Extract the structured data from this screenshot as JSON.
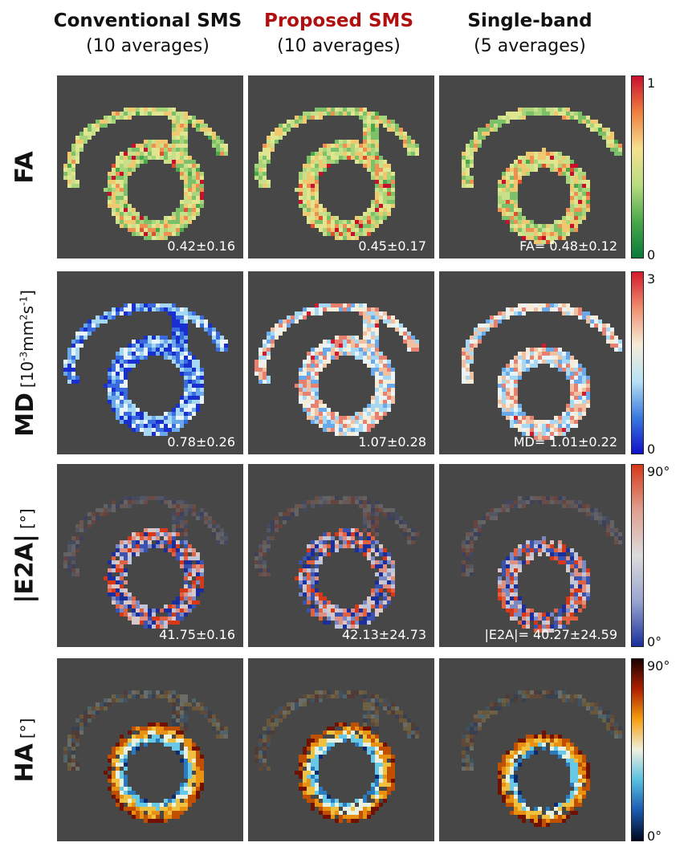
{
  "columns": [
    {
      "title": "Conventional SMS",
      "subtitle": "(10 averages)",
      "title_color": "#111111"
    },
    {
      "title": "Proposed SMS",
      "subtitle": "(10 averages)",
      "title_color": "#b01010"
    },
    {
      "title": "Single-band",
      "subtitle": "(5 averages)",
      "title_color": "#111111"
    }
  ],
  "rows": [
    {
      "label": "FA",
      "unit": "",
      "stats": [
        "0.42±0.16",
        "0.45±0.17",
        "FA= 0.48±0.12"
      ],
      "colorbar": {
        "max_label": "1",
        "min_label": "0",
        "colors": [
          "#c8102e",
          "#f08040",
          "#f5e090",
          "#b8dc80",
          "#4aa84a",
          "#0a7a3a"
        ]
      }
    },
    {
      "label": "MD",
      "unit_base": "[10",
      "unit_exp1": "-3",
      "unit_mid": "mm",
      "unit_exp2": "2",
      "unit_s": "s",
      "unit_exp3": "-1",
      "unit_end": "]",
      "stats": [
        "0.78±0.26",
        "1.07±0.28",
        "MD= 1.01±0.22"
      ],
      "colorbar": {
        "max_label": "3",
        "min_label": "0",
        "colors": [
          "#d41a2a",
          "#f09070",
          "#f6ecd8",
          "#b8e2f4",
          "#3a7ae0",
          "#1010c8"
        ]
      }
    },
    {
      "label": "|E2A|",
      "unit": "[°]",
      "stats": [
        "41.75±0.16",
        "42.13±24.73",
        "|E2A|= 40.27±24.59"
      ],
      "colorbar": {
        "max_label": "90°",
        "min_label": "0°",
        "colors": [
          "#d63818",
          "#e0a090",
          "#dcdcdc",
          "#9aa6d0",
          "#1a2f9c"
        ]
      }
    },
    {
      "label": "HA",
      "unit": "[°]",
      "stats": [
        "",
        "",
        ""
      ],
      "colorbar": {
        "max_label": "90°",
        "min_label": "0°",
        "colors": [
          "#1a0000",
          "#b02000",
          "#f5a010",
          "#f0f0e0",
          "#58c0e0",
          "#1a5ab0",
          "#000820"
        ]
      }
    }
  ]
}
